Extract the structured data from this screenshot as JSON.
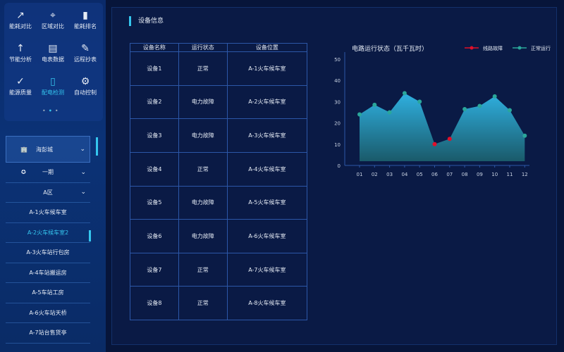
{
  "menu": [
    {
      "label": "能耗对比",
      "icon": "trend-line-icon",
      "glyph": "↗"
    },
    {
      "label": "区域对比",
      "icon": "location-pin-icon",
      "glyph": "⌖"
    },
    {
      "label": "能耗排名",
      "icon": "bar-chart-icon",
      "glyph": "▮"
    },
    {
      "label": "节能分析",
      "icon": "growth-chart-icon",
      "glyph": "↑"
    },
    {
      "label": "电表数据",
      "icon": "meter-icon",
      "glyph": "▤"
    },
    {
      "label": "远程抄表",
      "icon": "clipboard-icon",
      "glyph": "✎"
    },
    {
      "label": "能源质量",
      "icon": "shield-check-icon",
      "glyph": "✓"
    },
    {
      "label": "配电检测",
      "icon": "battery-icon",
      "glyph": "▯",
      "active": true
    },
    {
      "label": "自动控制",
      "icon": "control-icon",
      "glyph": "⚙"
    }
  ],
  "tree": {
    "city": "海彭城",
    "phase": "一期",
    "zone": "A区",
    "items": [
      "A-1火车候车室",
      "A-2火车候车室2",
      "A-3火车站行包房",
      "A-4车站搬运房",
      "A-5车站工房",
      "A-6火车站天桥",
      "A-7站台售货亭"
    ],
    "active_index": 1
  },
  "main": {
    "title": "设备信息",
    "table": {
      "headers": [
        "设备名称",
        "运行状态",
        "设备位置"
      ],
      "rows": [
        [
          "设备1",
          "正常",
          "A-1火车候车室"
        ],
        [
          "设备2",
          "电力故障",
          "A-2火车候车室"
        ],
        [
          "设备3",
          "电力故障",
          "A-3火车候车室"
        ],
        [
          "设备4",
          "正常",
          "A-4火车候车室"
        ],
        [
          "设备5",
          "电力故障",
          "A-5火车候车室"
        ],
        [
          "设备6",
          "电力故障",
          "A-6火车候车室"
        ],
        [
          "设备7",
          "正常",
          "A-7火车候车室"
        ],
        [
          "设备8",
          "正常",
          "A-8火车候车室"
        ]
      ]
    }
  },
  "chart_data": {
    "type": "area",
    "title": "电路运行状态（瓦千瓦时）",
    "categories": [
      "01",
      "02",
      "03",
      "04",
      "05",
      "06",
      "07",
      "08",
      "09",
      "10",
      "11",
      "12"
    ],
    "values": [
      24,
      28.5,
      25,
      34,
      30,
      10,
      12.5,
      26.5,
      28,
      32.5,
      26,
      14
    ],
    "fault_indices": [
      5,
      6
    ],
    "ylim": [
      0,
      50
    ],
    "yticks": [
      0,
      10,
      20,
      30,
      40,
      50
    ],
    "legend": [
      {
        "name": "线路故障",
        "color": "#e0102a"
      },
      {
        "name": "正常运行",
        "color": "#2aa69a"
      }
    ],
    "legend_position": "top-right",
    "fill_top": "#2fb0e0",
    "fill_bottom": "#1a5a6a"
  }
}
